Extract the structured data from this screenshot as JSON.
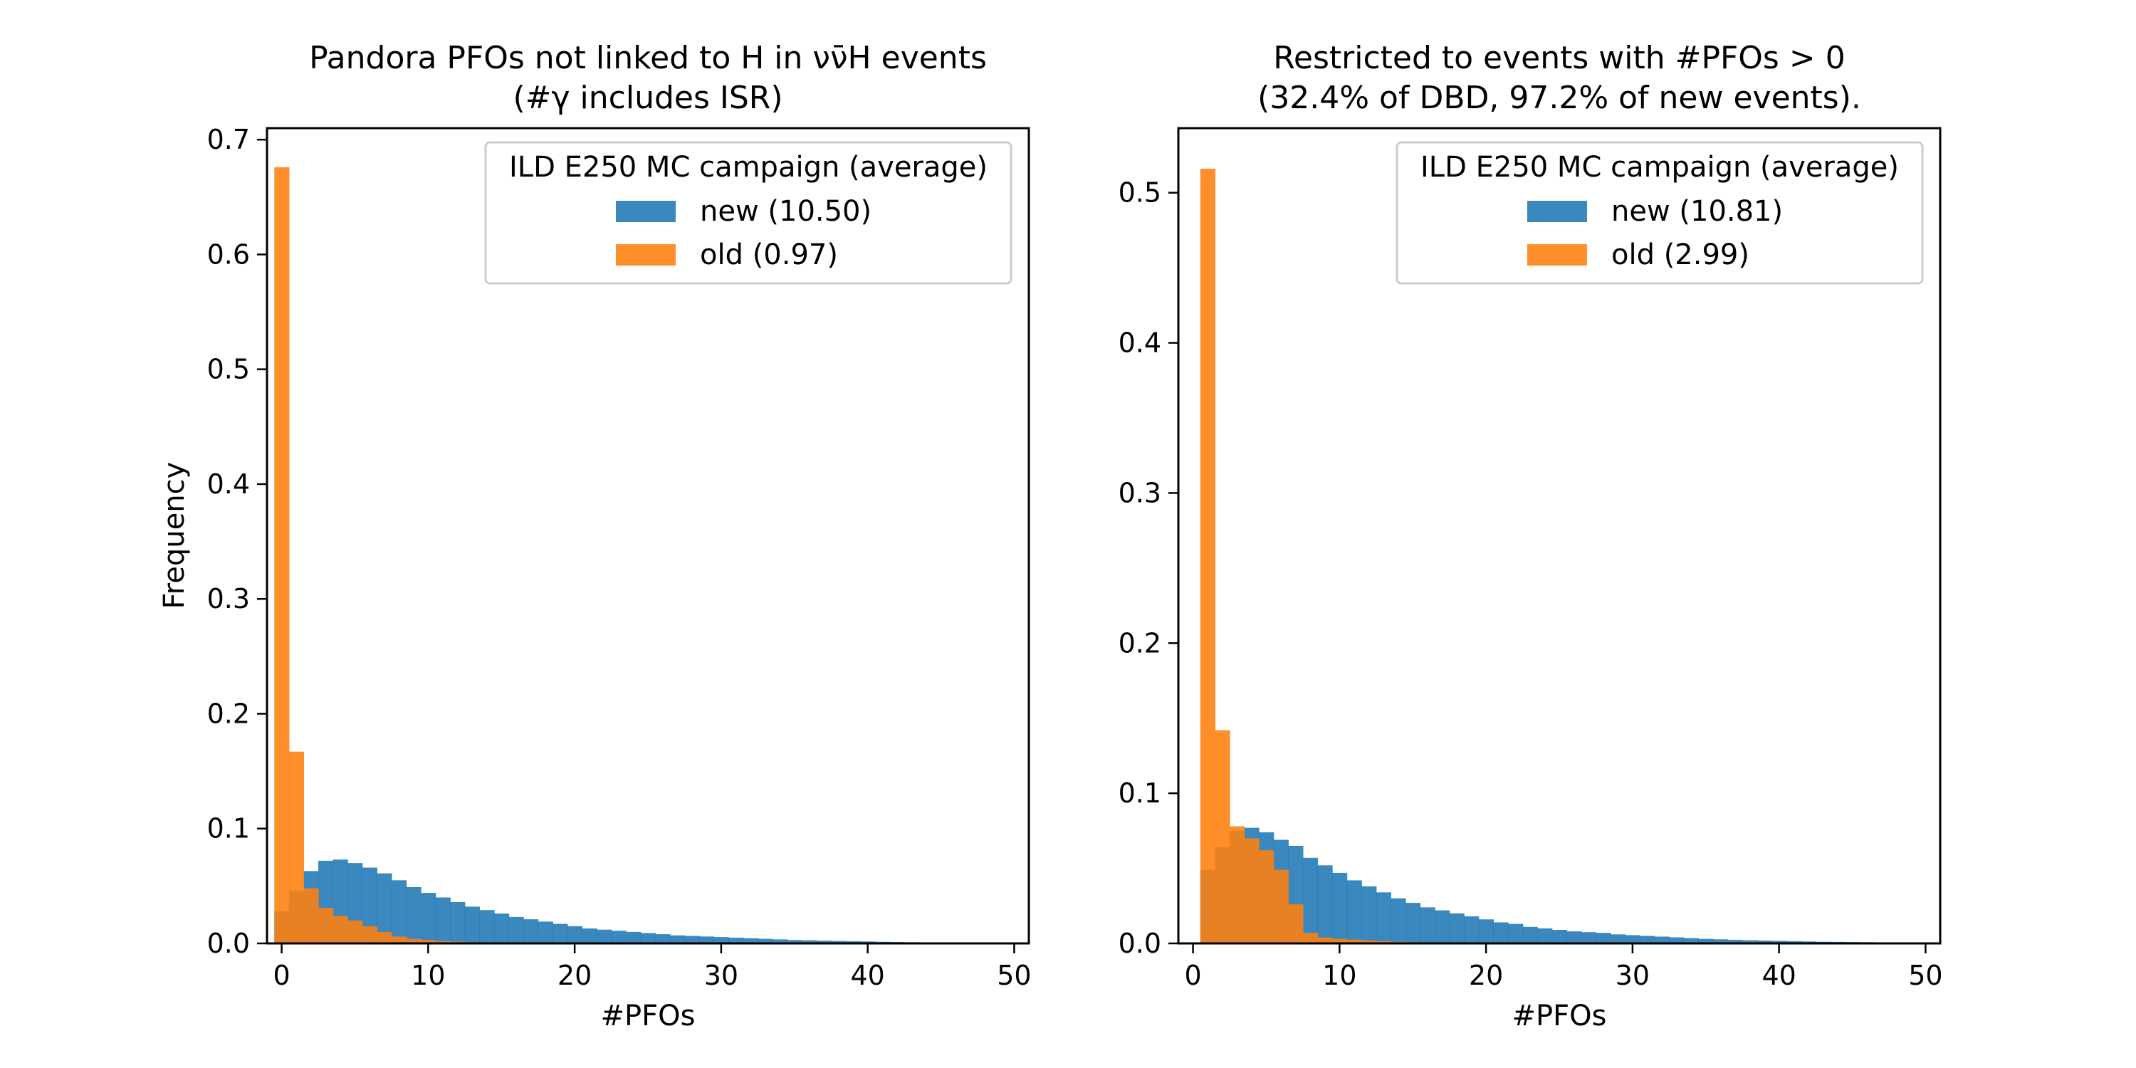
{
  "colors": {
    "new": "#1f77b4",
    "old": "#ff7f0e",
    "bar_alpha": 0.88
  },
  "chart_data": [
    {
      "type": "bar",
      "title": "Pandora PFOs not linked to H in  νν̄H events",
      "subtitle": "(#γ includes ISR)",
      "xlabel": "#PFOs",
      "ylabel": "Frequency",
      "xlim": [
        -1,
        51
      ],
      "ylim": [
        0,
        0.71
      ],
      "xticks": [
        0,
        10,
        20,
        30,
        40,
        50
      ],
      "yticks": [
        0.0,
        0.1,
        0.2,
        0.3,
        0.4,
        0.5,
        0.6,
        0.7
      ],
      "grid": false,
      "legend": {
        "title": "ILD E250 MC campaign (average)",
        "position": "top-right"
      },
      "bin_start": -0.5,
      "bin_width": 1,
      "series": [
        {
          "name": "new (10.50)",
          "key": "new",
          "values": [
            0.028,
            0.046,
            0.063,
            0.072,
            0.073,
            0.07,
            0.066,
            0.061,
            0.055,
            0.049,
            0.044,
            0.04,
            0.036,
            0.032,
            0.029,
            0.026,
            0.023,
            0.021,
            0.019,
            0.017,
            0.015,
            0.013,
            0.012,
            0.011,
            0.01,
            0.009,
            0.008,
            0.007,
            0.0065,
            0.006,
            0.0055,
            0.005,
            0.0045,
            0.004,
            0.0035,
            0.003,
            0.0027,
            0.0024,
            0.0021,
            0.0019,
            0.0017,
            0.0014,
            0.0012,
            0.001,
            0.0009,
            0.0008,
            0.0007,
            0.0006
          ]
        },
        {
          "name": "old (0.97)",
          "key": "old",
          "values": [
            0.676,
            0.167,
            0.048,
            0.031,
            0.024,
            0.02,
            0.015,
            0.01,
            0.006,
            0.004,
            0.003,
            0.002,
            0.0015,
            0.001,
            0.0008,
            0.0006,
            0.0005,
            0.0004,
            0.0003,
            0.0002
          ]
        }
      ]
    },
    {
      "type": "bar",
      "title": "Restricted to events with #PFOs > 0",
      "subtitle": "(32.4% of DBD, 97.2% of new events).",
      "xlabel": "#PFOs",
      "ylabel": "",
      "xlim": [
        -1,
        51
      ],
      "ylim": [
        0,
        0.543
      ],
      "xticks": [
        0,
        10,
        20,
        30,
        40,
        50
      ],
      "yticks": [
        0.0,
        0.1,
        0.2,
        0.3,
        0.4,
        0.5
      ],
      "grid": false,
      "legend": {
        "title": "ILD E250 MC campaign (average)",
        "position": "top-right"
      },
      "bin_start": 0.5,
      "bin_width": 1,
      "series": [
        {
          "name": "new (10.81)",
          "key": "new",
          "values": [
            0.049,
            0.064,
            0.075,
            0.077,
            0.074,
            0.069,
            0.065,
            0.057,
            0.052,
            0.047,
            0.042,
            0.038,
            0.034,
            0.03,
            0.027,
            0.024,
            0.022,
            0.02,
            0.018,
            0.016,
            0.014,
            0.013,
            0.011,
            0.01,
            0.009,
            0.008,
            0.0075,
            0.007,
            0.006,
            0.0055,
            0.005,
            0.0045,
            0.004,
            0.0035,
            0.003,
            0.0027,
            0.0024,
            0.0021,
            0.0019,
            0.0017,
            0.0015,
            0.0013,
            0.0011,
            0.001,
            0.0009,
            0.0008,
            0.0007,
            0.0006,
            0.0005
          ]
        },
        {
          "name": "old (2.99)",
          "key": "old",
          "values": [
            0.516,
            0.142,
            0.078,
            0.07,
            0.062,
            0.049,
            0.026,
            0.007,
            0.004,
            0.003,
            0.0025,
            0.002,
            0.0015,
            0.001,
            0.0008,
            0.0006,
            0.0005,
            0.0004,
            0.0003,
            0.0002
          ]
        }
      ]
    }
  ]
}
